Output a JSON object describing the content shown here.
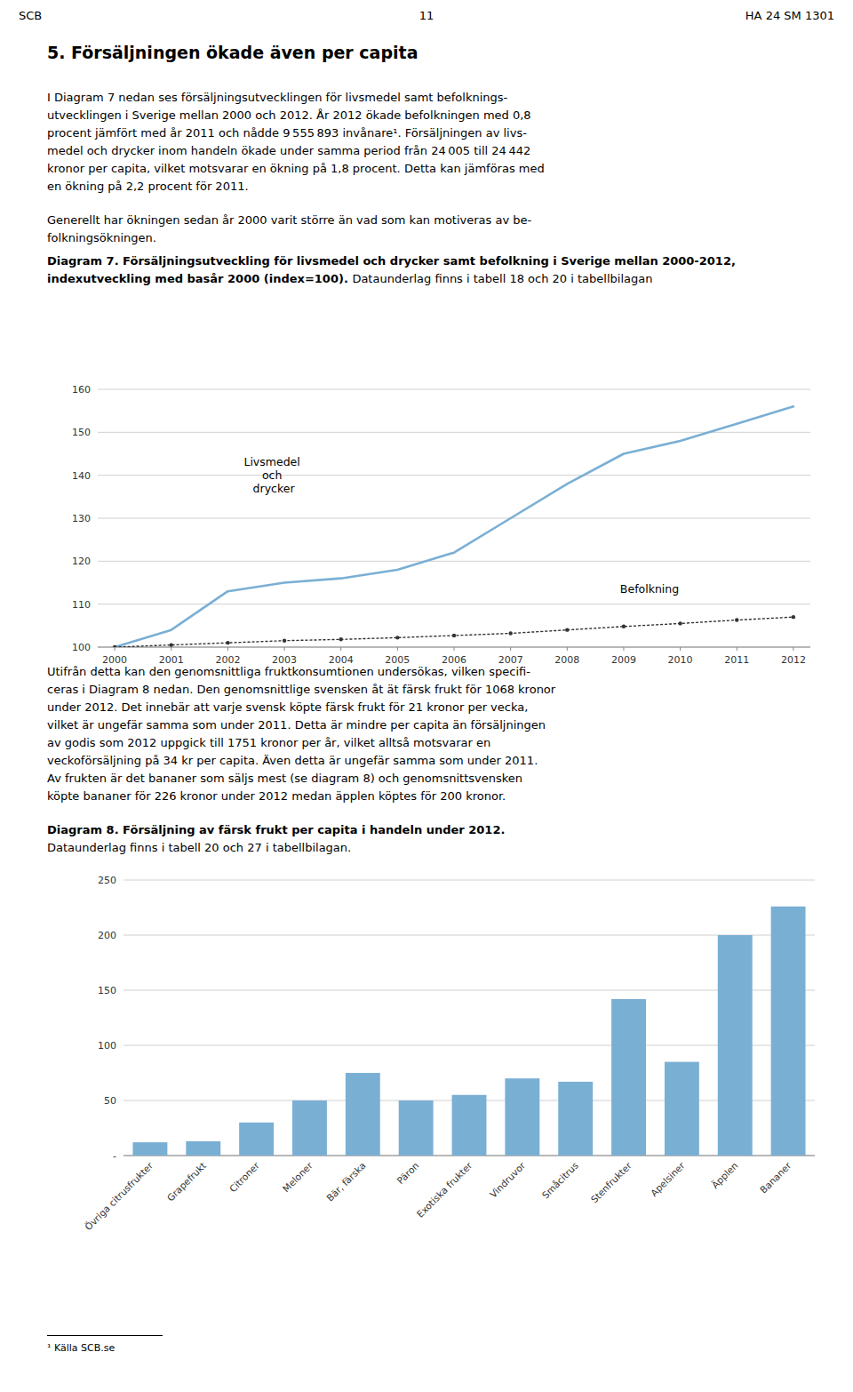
{
  "page": {
    "header_left": "SCB",
    "header_center": "11",
    "header_right": "HA 24 SM 1301",
    "section_title": "5. Försäljningen ökade även per capita",
    "paragraphs": [
      "I Diagram 7 nedan ses försäljningsutvecklingen för livsmedel samt befolknings-\nutvecklingen i Sverige mellan 2000 och 2012. År 2012 ökade befolkningen med 0,8\nprocent jämfört med år 2011 och nådde 9 555 893 invånare¹. Försäljningen av livs-\nmedel och drycker inom handeln ökade under samma period från 24 005 till 24 442\nkronor per capita, vilket motsvarar en ökning på 1,8 procent. Detta kan jämföras med\nen ökning på 2,2 procent för 2011.",
      "Generellt har ökningen sedan år 2000 varit större än vad som kan motiveras av be-\nfolkningsökningen.",
      "Utifrån detta kan den genomsnittliga fruktkonsumtionen undersökas, vilken specifi-\nceras i Diagram 8 nedan. Den genomsnittlige svensken åt ät färsk frukt för 1068 kronor\nunder 2012. Det innebär att varje svensk köpte färsk frukt för 21 kronor per vecka,\nvilket är ungefär samma som under 2011. Detta är mindre per capita än försäljningen\nav godis som 2012 uppgick till 1751 kronor per år, vilket alltså motsvarar en\nveckoförsäljning på 34 kr per capita. Även detta är ungefär samma som under 2011.\nAv frukten är det bananer som säljs mest (se diagram 8) och genomsnittsvensken\nköpte bananer för 226 kronor under 2012 medan äpplen köptes för 200 kronor."
    ],
    "footnote": "¹ Källa SCB.se"
  },
  "chart_data": [
    {
      "type": "line",
      "title": "Diagram 7. Försäljningsutveckling för livsmedel och drycker samt befolkning i Sverige mellan 2000-2012, indexutveckling med basår 2000 (index=100).",
      "subtitle": "Dataunderlag finns i tabell 18 och 20 i tabellbilagan",
      "x": [
        2000,
        2001,
        2002,
        2003,
        2004,
        2005,
        2006,
        2007,
        2008,
        2009,
        2010,
        2011,
        2012
      ],
      "series": [
        {
          "name": "Livsmedel och drycker",
          "color": "#7aafd4",
          "line_style": "solid",
          "values": [
            100,
            104,
            113,
            115,
            116,
            118,
            122,
            130,
            138,
            145,
            148,
            152,
            156
          ]
        },
        {
          "name": "Befolkning",
          "color": "#333333",
          "line_style": "dotted",
          "marker": "dot",
          "values": [
            100,
            100.5,
            101.0,
            101.5,
            101.8,
            102.2,
            102.7,
            103.2,
            104.0,
            104.8,
            105.5,
            106.3,
            107.0
          ]
        }
      ],
      "xlim": [
        1999.7,
        2012.3
      ],
      "xticks": [
        2000,
        2001,
        2002,
        2003,
        2004,
        2005,
        2006,
        2007,
        2008,
        2009,
        2010,
        2011,
        2012
      ],
      "ylim": [
        100,
        160
      ],
      "yticks": [
        100,
        110,
        120,
        130,
        140,
        150,
        160
      ],
      "grid": true
    },
    {
      "type": "bar",
      "title": "Diagram 8. Försäljning av färsk frukt per capita i handeln under 2012.",
      "subtitle": "Dataunderlag finns i tabell 20 och 27 i tabellbilagan.",
      "categories": [
        "Övriga citrusfrukter",
        "Grapefrukt",
        "Citroner",
        "Meloner",
        "Bär, färska",
        "Päron",
        "Exotiska frukter",
        "Vindruvor",
        "Småcitrus",
        "Stenfrukter",
        "Apelsiner",
        "Äpplen",
        "Bananer"
      ],
      "values": [
        12,
        13,
        30,
        50,
        75,
        50,
        55,
        70,
        67,
        142,
        85,
        200,
        226
      ],
      "color": "#7aafd4",
      "ylim": [
        0,
        250
      ],
      "yticks": [
        {
          "value": 0,
          "label": "-"
        },
        50,
        100,
        150,
        200,
        250
      ],
      "grid": true
    }
  ]
}
